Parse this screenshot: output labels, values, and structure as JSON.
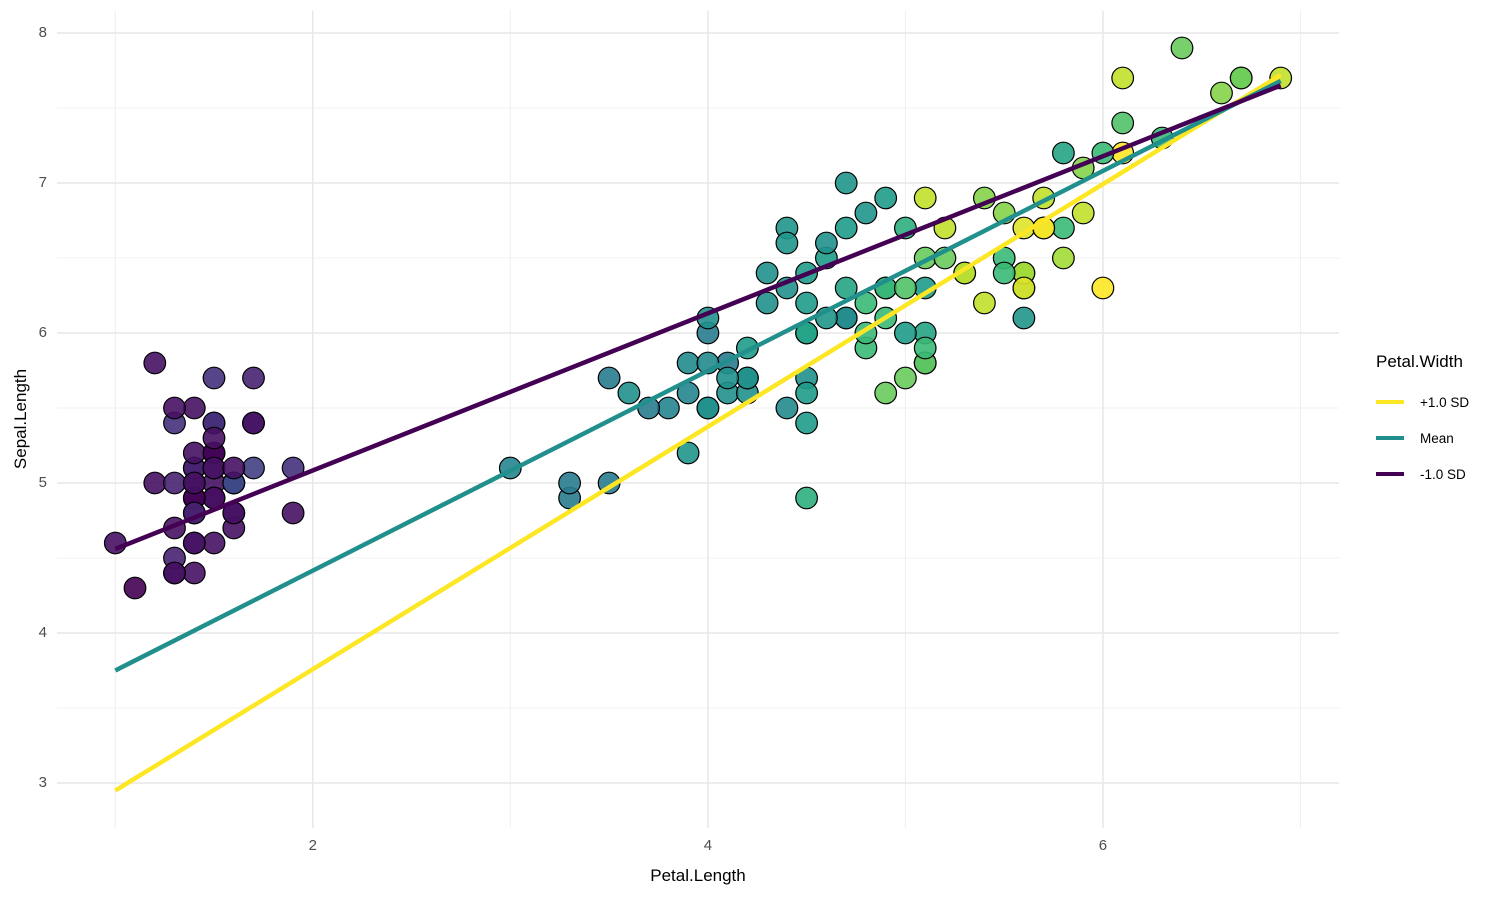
{
  "chart_data": {
    "type": "scatter",
    "title": "",
    "xlabel": "Petal.Length",
    "ylabel": "Sepal.Length",
    "x_ticks": [
      2,
      4,
      6
    ],
    "y_ticks": [
      3,
      4,
      5,
      6,
      7,
      8
    ],
    "x_minor": [
      1,
      3,
      5,
      7
    ],
    "y_minor": [
      3.5,
      4.5,
      5.5,
      6.5,
      7.5
    ],
    "xlim": [
      0.705,
      7.195
    ],
    "ylim": [
      2.7,
      8.15
    ],
    "grid": true,
    "legend_position": "right",
    "legend": {
      "title": "Petal.Width"
    },
    "lines": [
      {
        "name": "+1.0 SD",
        "color": "#FDE725",
        "x1": 1.0,
        "y1": 2.95,
        "x2": 6.9,
        "y2": 7.72
      },
      {
        "name": "Mean",
        "color": "#21908C",
        "x1": 1.0,
        "y1": 3.75,
        "x2": 6.9,
        "y2": 7.68
      },
      {
        "name": "-1.0 SD",
        "color": "#440154",
        "x1": 1.0,
        "y1": 4.56,
        "x2": 6.9,
        "y2": 7.65
      }
    ],
    "palette": {
      "name": "viridis",
      "domain": [
        0.1,
        2.5
      ],
      "stops": [
        "#440154",
        "#482878",
        "#3E4A89",
        "#31688E",
        "#26828E",
        "#21918C",
        "#1F9E89",
        "#35B779",
        "#6DCD59",
        "#B4DE2C",
        "#FDE725"
      ]
    },
    "point_style": {
      "radius": 10.8,
      "stroke": "#000000",
      "fill_opacity": 0.9
    },
    "grid_colors": {
      "major": "#E7E7E7",
      "minor": "#F0F0F0"
    },
    "points_format": [
      "Petal.Length",
      "Sepal.Length",
      "Petal.Width"
    ],
    "points": [
      [
        1.4,
        5.1,
        0.2
      ],
      [
        1.4,
        4.9,
        0.2
      ],
      [
        1.3,
        4.7,
        0.2
      ],
      [
        1.5,
        4.6,
        0.2
      ],
      [
        1.4,
        5.0,
        0.2
      ],
      [
        1.7,
        5.4,
        0.4
      ],
      [
        1.4,
        4.6,
        0.3
      ],
      [
        1.5,
        5.0,
        0.2
      ],
      [
        1.4,
        4.4,
        0.2
      ],
      [
        1.5,
        4.9,
        0.1
      ],
      [
        1.5,
        5.4,
        0.2
      ],
      [
        1.6,
        4.8,
        0.2
      ],
      [
        1.4,
        4.8,
        0.1
      ],
      [
        1.1,
        4.3,
        0.1
      ],
      [
        1.2,
        5.8,
        0.2
      ],
      [
        1.5,
        5.7,
        0.4
      ],
      [
        1.3,
        5.4,
        0.4
      ],
      [
        1.4,
        5.1,
        0.3
      ],
      [
        1.7,
        5.7,
        0.3
      ],
      [
        1.5,
        5.1,
        0.3
      ],
      [
        1.7,
        5.4,
        0.2
      ],
      [
        1.5,
        5.1,
        0.4
      ],
      [
        1.0,
        4.6,
        0.2
      ],
      [
        1.7,
        5.1,
        0.5
      ],
      [
        1.9,
        4.8,
        0.2
      ],
      [
        1.6,
        5.0,
        0.2
      ],
      [
        1.6,
        5.0,
        0.4
      ],
      [
        1.5,
        5.2,
        0.2
      ],
      [
        1.4,
        5.2,
        0.2
      ],
      [
        1.6,
        4.7,
        0.2
      ],
      [
        1.6,
        4.8,
        0.2
      ],
      [
        1.5,
        5.4,
        0.4
      ],
      [
        1.5,
        5.2,
        0.1
      ],
      [
        1.4,
        5.5,
        0.2
      ],
      [
        1.5,
        4.9,
        0.2
      ],
      [
        1.2,
        5.0,
        0.2
      ],
      [
        1.3,
        5.5,
        0.2
      ],
      [
        1.4,
        4.9,
        0.1
      ],
      [
        1.3,
        4.4,
        0.2
      ],
      [
        1.5,
        5.1,
        0.2
      ],
      [
        1.3,
        5.0,
        0.3
      ],
      [
        1.3,
        4.5,
        0.3
      ],
      [
        1.3,
        4.4,
        0.2
      ],
      [
        1.6,
        5.0,
        0.6
      ],
      [
        1.9,
        5.1,
        0.4
      ],
      [
        1.4,
        4.8,
        0.3
      ],
      [
        1.6,
        5.1,
        0.2
      ],
      [
        1.4,
        4.6,
        0.2
      ],
      [
        1.5,
        5.3,
        0.2
      ],
      [
        1.4,
        5.0,
        0.2
      ],
      [
        4.7,
        7.0,
        1.4
      ],
      [
        4.5,
        6.4,
        1.5
      ],
      [
        4.9,
        6.9,
        1.5
      ],
      [
        4.0,
        5.5,
        1.3
      ],
      [
        4.6,
        6.5,
        1.5
      ],
      [
        4.5,
        5.7,
        1.3
      ],
      [
        4.7,
        6.3,
        1.6
      ],
      [
        3.3,
        4.9,
        1.0
      ],
      [
        4.6,
        6.6,
        1.3
      ],
      [
        3.9,
        5.2,
        1.4
      ],
      [
        3.5,
        5.0,
        1.0
      ],
      [
        4.2,
        5.9,
        1.5
      ],
      [
        4.0,
        6.0,
        1.0
      ],
      [
        4.7,
        6.1,
        1.4
      ],
      [
        3.6,
        5.6,
        1.3
      ],
      [
        4.4,
        6.7,
        1.4
      ],
      [
        4.5,
        5.6,
        1.5
      ],
      [
        4.1,
        5.8,
        1.0
      ],
      [
        4.5,
        6.2,
        1.5
      ],
      [
        3.9,
        5.6,
        1.1
      ],
      [
        4.8,
        5.9,
        1.8
      ],
      [
        4.0,
        6.1,
        1.3
      ],
      [
        4.9,
        6.3,
        1.5
      ],
      [
        4.7,
        6.1,
        1.2
      ],
      [
        4.3,
        6.4,
        1.3
      ],
      [
        4.4,
        6.6,
        1.4
      ],
      [
        4.8,
        6.8,
        1.4
      ],
      [
        5.0,
        6.7,
        1.7
      ],
      [
        4.5,
        6.0,
        1.5
      ],
      [
        3.5,
        5.7,
        1.0
      ],
      [
        3.8,
        5.5,
        1.1
      ],
      [
        3.7,
        5.5,
        1.0
      ],
      [
        3.9,
        5.8,
        1.2
      ],
      [
        5.1,
        6.0,
        1.6
      ],
      [
        4.5,
        5.4,
        1.5
      ],
      [
        4.5,
        6.0,
        1.6
      ],
      [
        4.7,
        6.7,
        1.5
      ],
      [
        4.4,
        6.3,
        1.3
      ],
      [
        4.1,
        5.6,
        1.3
      ],
      [
        4.0,
        5.5,
        1.3
      ],
      [
        4.4,
        5.5,
        1.2
      ],
      [
        4.6,
        6.1,
        1.4
      ],
      [
        4.0,
        5.8,
        1.2
      ],
      [
        3.3,
        5.0,
        1.0
      ],
      [
        4.2,
        5.6,
        1.3
      ],
      [
        4.2,
        5.7,
        1.2
      ],
      [
        4.2,
        5.7,
        1.3
      ],
      [
        4.3,
        6.2,
        1.3
      ],
      [
        3.0,
        5.1,
        1.1
      ],
      [
        4.1,
        5.7,
        1.3
      ],
      [
        6.0,
        6.3,
        2.5
      ],
      [
        5.1,
        5.8,
        1.9
      ],
      [
        5.9,
        7.1,
        2.1
      ],
      [
        5.6,
        6.3,
        1.8
      ],
      [
        5.8,
        6.5,
        2.2
      ],
      [
        6.6,
        7.6,
        2.1
      ],
      [
        4.5,
        4.9,
        1.7
      ],
      [
        6.3,
        7.3,
        1.8
      ],
      [
        5.8,
        6.7,
        1.8
      ],
      [
        6.1,
        7.2,
        2.5
      ],
      [
        5.1,
        6.5,
        2.0
      ],
      [
        5.3,
        6.4,
        1.9
      ],
      [
        5.5,
        6.8,
        2.1
      ],
      [
        5.0,
        5.7,
        2.0
      ],
      [
        5.1,
        5.8,
        2.4
      ],
      [
        5.3,
        6.4,
        2.3
      ],
      [
        5.5,
        6.5,
        1.8
      ],
      [
        6.7,
        7.7,
        2.2
      ],
      [
        6.9,
        7.7,
        2.3
      ],
      [
        5.0,
        6.0,
        1.5
      ],
      [
        5.7,
        6.9,
        2.3
      ],
      [
        4.9,
        5.6,
        2.0
      ],
      [
        6.7,
        7.7,
        2.0
      ],
      [
        4.9,
        6.3,
        1.8
      ],
      [
        5.7,
        6.7,
        2.1
      ],
      [
        6.0,
        7.2,
        1.8
      ],
      [
        4.8,
        6.2,
        1.8
      ],
      [
        4.9,
        6.1,
        1.8
      ],
      [
        5.6,
        6.4,
        2.1
      ],
      [
        5.8,
        7.2,
        1.6
      ],
      [
        6.1,
        7.4,
        1.9
      ],
      [
        6.4,
        7.9,
        2.0
      ],
      [
        5.6,
        6.4,
        2.2
      ],
      [
        5.1,
        6.3,
        1.5
      ],
      [
        5.6,
        6.1,
        1.4
      ],
      [
        6.1,
        7.7,
        2.3
      ],
      [
        5.6,
        6.3,
        2.4
      ],
      [
        5.5,
        6.4,
        1.8
      ],
      [
        4.8,
        6.0,
        1.8
      ],
      [
        5.4,
        6.9,
        2.1
      ],
      [
        5.6,
        6.7,
        2.4
      ],
      [
        5.1,
        6.9,
        2.3
      ],
      [
        5.1,
        5.8,
        1.9
      ],
      [
        5.9,
        6.8,
        2.3
      ],
      [
        5.7,
        6.7,
        2.5
      ],
      [
        5.2,
        6.7,
        2.3
      ],
      [
        5.0,
        6.3,
        1.9
      ],
      [
        5.2,
        6.5,
        2.0
      ],
      [
        5.4,
        6.2,
        2.3
      ],
      [
        5.1,
        5.9,
        1.8
      ]
    ]
  }
}
